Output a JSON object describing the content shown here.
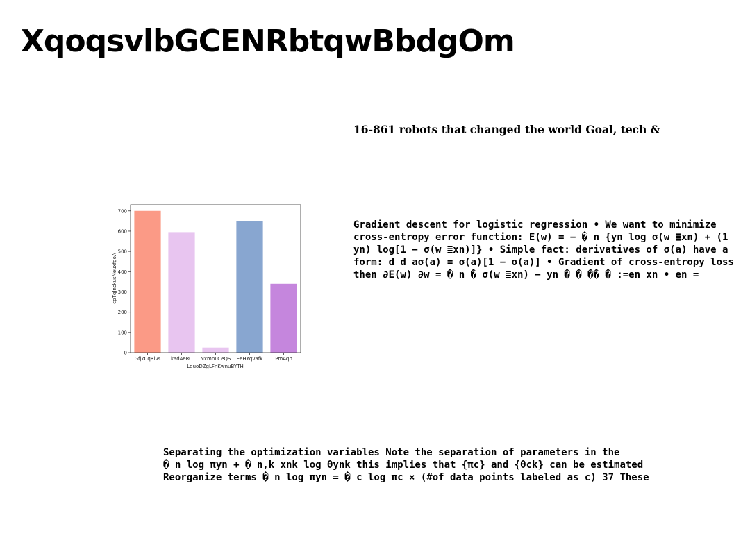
{
  "slide": {
    "title": "XqoqsvlbGCENRbtqwBbdgOm",
    "subtitle": "16-861 robots that changed the world Goal, tech &",
    "paragraph_a": [
      "Gradient descent for logistic regression • We want to minimize",
      "cross-entropy error function: E(w) = − � n {yn log σ(w ≣xn) + (1",
      "yn) log[1 − σ(w ≣xn)]} • Simple fact: derivatives of σ(a) have a",
      "form: d d aσ(a) = σ(a)[1 − σ(a)] • Gradient of cross-entropy loss",
      "then ∂E(w) ∂w = � n � σ(w ≣xn) − yn � � �� � :=en xn • en ="
    ],
    "paragraph_b": [
      "Separating the optimization variables Note the separation of parameters in the",
      "� n log πyn + � n,k xnk log θynk this implies that {πc} and {θck} can be estimated",
      "Reorganize terms � n log πyn = � c log πc × (#of data points labeled as c) 37 These"
    ]
  },
  "chart_data": {
    "type": "bar",
    "categories": [
      "GfjkCqRlvs",
      "kadAeRC",
      "NxmnLCeQS",
      "EeHYqvafk",
      "PmAqp"
    ],
    "values": [
      700,
      595,
      25,
      650,
      340
    ],
    "colors": [
      "#fb9a86",
      "#e8c5f0",
      "#e8c5f0",
      "#88a6d0",
      "#c586dd"
    ],
    "xlabel": "LduoDZgLFnKwnuBYTH",
    "ylabel": "cpTqJnckusNeuxfgoA",
    "ylim": [
      0,
      730
    ],
    "yticks": [
      0,
      100,
      200,
      300,
      400,
      500,
      600,
      700
    ],
    "grid": false
  }
}
